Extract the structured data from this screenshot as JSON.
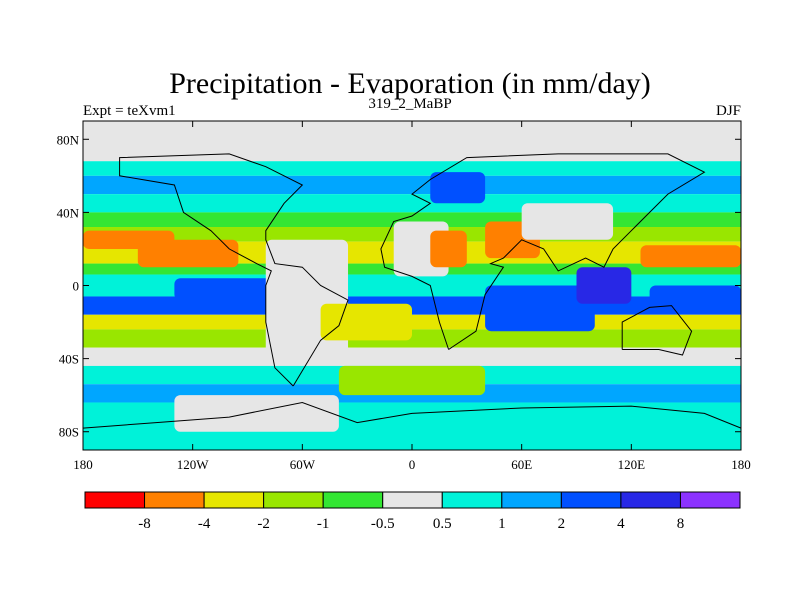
{
  "figure": {
    "title": "Precipitation - Evaporation (in mm/day)",
    "left_label": "Expt = teXvm1",
    "center_label": "319_2_MaBP",
    "right_label": "DJF"
  },
  "chart_data": {
    "type": "heatmap",
    "projection": "cylindrical-equidistant",
    "lon_range": [
      -180,
      180
    ],
    "lat_range": [
      -90,
      90
    ],
    "x_ticks": [
      "180",
      "120W",
      "60W",
      "0",
      "60E",
      "120E",
      "180"
    ],
    "y_ticks": [
      "80N",
      "40N",
      "0",
      "40S",
      "80S"
    ],
    "colorbar": {
      "labels": [
        "-8",
        "-4",
        "-2",
        "-1",
        "-0.5",
        "0.5",
        "1",
        "2",
        "4",
        "8"
      ],
      "colors": [
        "#ff0000",
        "#ff8000",
        "#e6e600",
        "#99e600",
        "#33e633",
        "#e6e6e6",
        "#00f2d9",
        "#00a6ff",
        "#0050ff",
        "#2828e6",
        "#8c32ff"
      ]
    },
    "bands": [
      {
        "lat_from": 90,
        "lat_to": 68,
        "class": "#e6e6e6"
      },
      {
        "lat_from": 68,
        "lat_to": 60,
        "class": "#00f2d9"
      },
      {
        "lat_from": 60,
        "lat_to": 50,
        "class": "#00a6ff"
      },
      {
        "lat_from": 50,
        "lat_to": 40,
        "class": "#00f2d9"
      },
      {
        "lat_from": 40,
        "lat_to": 32,
        "class": "#33e633"
      },
      {
        "lat_from": 32,
        "lat_to": 24,
        "class": "#99e600"
      },
      {
        "lat_from": 24,
        "lat_to": 12,
        "class": "#e6e600"
      },
      {
        "lat_from": 12,
        "lat_to": 6,
        "class": "#33e633"
      },
      {
        "lat_from": 6,
        "lat_to": -6,
        "class": "#00f2d9"
      },
      {
        "lat_from": -6,
        "lat_to": -16,
        "class": "#0050ff"
      },
      {
        "lat_from": -16,
        "lat_to": -24,
        "class": "#e6e600"
      },
      {
        "lat_from": -24,
        "lat_to": -34,
        "class": "#99e600"
      },
      {
        "lat_from": -34,
        "lat_to": -44,
        "class": "#e6e6e6"
      },
      {
        "lat_from": -44,
        "lat_to": -54,
        "class": "#00f2d9"
      },
      {
        "lat_from": -54,
        "lat_to": -64,
        "class": "#00a6ff"
      },
      {
        "lat_from": -64,
        "lat_to": -90,
        "class": "#00f2d9"
      }
    ],
    "patches": [
      {
        "region": "north-pacific-subtropics",
        "lon": [
          -150,
          -95
        ],
        "lat": [
          10,
          25
        ],
        "class": "#ff8000"
      },
      {
        "region": "north-pacific-band",
        "lon": [
          -180,
          -130
        ],
        "lat": [
          20,
          30
        ],
        "class": "#ff8000"
      },
      {
        "region": "equatorial-east-pacific",
        "lon": [
          -130,
          -70
        ],
        "lat": [
          -8,
          4
        ],
        "class": "#0050ff"
      },
      {
        "region": "south-america",
        "lon": [
          -80,
          -35
        ],
        "lat": [
          -40,
          25
        ],
        "class": "#e6e6e6"
      },
      {
        "region": "atlantic-south",
        "lon": [
          -50,
          0
        ],
        "lat": [
          -30,
          -10
        ],
        "class": "#e6e600"
      },
      {
        "region": "north-africa",
        "lon": [
          -10,
          20
        ],
        "lat": [
          5,
          35
        ],
        "class": "#e6e6e6"
      },
      {
        "region": "sahara-east",
        "lon": [
          10,
          30
        ],
        "lat": [
          10,
          30
        ],
        "class": "#ff8000"
      },
      {
        "region": "europe",
        "lon": [
          10,
          40
        ],
        "lat": [
          45,
          62
        ],
        "class": "#0050ff"
      },
      {
        "region": "arabia",
        "lon": [
          40,
          70
        ],
        "lat": [
          15,
          35
        ],
        "class": "#ff8000"
      },
      {
        "region": "central-asia",
        "lon": [
          60,
          110
        ],
        "lat": [
          25,
          45
        ],
        "class": "#e6e6e6"
      },
      {
        "region": "indian-ocean",
        "lon": [
          40,
          100
        ],
        "lat": [
          -25,
          0
        ],
        "class": "#0050ff"
      },
      {
        "region": "maritime-continent",
        "lon": [
          90,
          120
        ],
        "lat": [
          -10,
          10
        ],
        "class": "#2828e6"
      },
      {
        "region": "west-pacific-dry",
        "lon": [
          125,
          180
        ],
        "lat": [
          10,
          22
        ],
        "class": "#ff8000"
      },
      {
        "region": "south-pacific-convergence",
        "lon": [
          130,
          180
        ],
        "lat": [
          -12,
          0
        ],
        "class": "#0050ff"
      },
      {
        "region": "south-atlantic-green",
        "lon": [
          -40,
          40
        ],
        "lat": [
          -60,
          -44
        ],
        "class": "#99e600"
      },
      {
        "region": "antarctic-coast-dry",
        "lon": [
          -130,
          -40
        ],
        "lat": [
          -80,
          -60
        ],
        "class": "#e6e6e6"
      }
    ]
  }
}
